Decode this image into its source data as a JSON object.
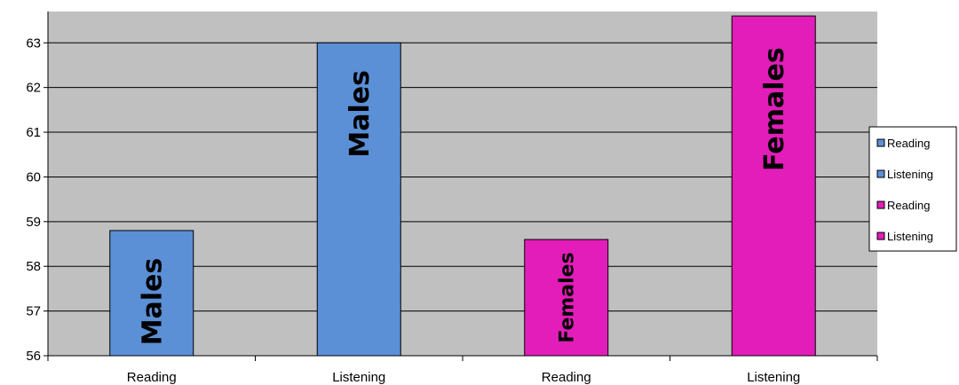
{
  "chart_data": {
    "type": "bar",
    "categories": [
      "Reading",
      "Listening",
      "Reading",
      "Listening"
    ],
    "values": [
      58.8,
      63.0,
      58.6,
      63.6
    ],
    "bar_labels": [
      "Males",
      "Males",
      "Females",
      "Females"
    ],
    "bar_colors": [
      "#5B8FD6",
      "#5B8FD6",
      "#E21DB9",
      "#E21DB9"
    ],
    "ylim": [
      56,
      63.7
    ],
    "yticks": [
      "56",
      "57",
      "58",
      "59",
      "60",
      "61",
      "62",
      "63"
    ],
    "grid": true,
    "plot_background": "#C0C0C0",
    "legend": {
      "placement": "right",
      "entries": [
        {
          "label": "Reading",
          "color": "#5B8FD6"
        },
        {
          "label": "Listening",
          "color": "#5B8FD6"
        },
        {
          "label": "Reading",
          "color": "#E21DB9"
        },
        {
          "label": "Listening",
          "color": "#E21DB9"
        }
      ]
    }
  }
}
